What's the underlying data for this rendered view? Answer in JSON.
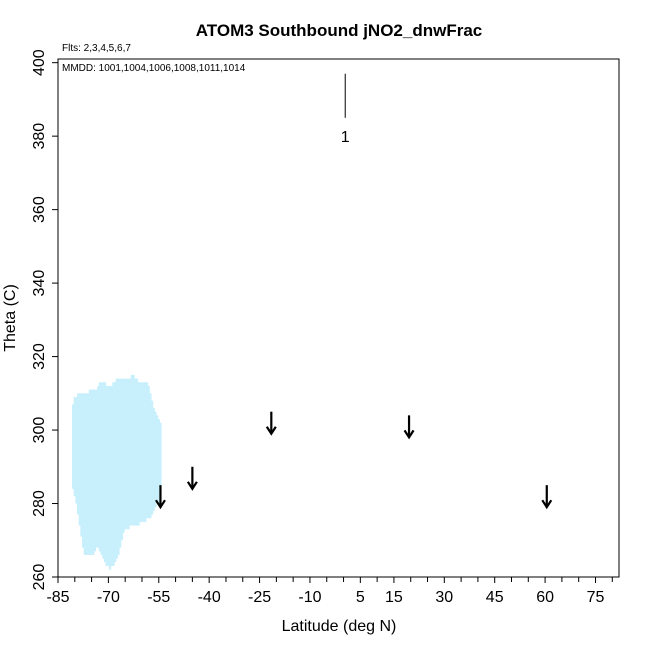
{
  "chart_data": {
    "type": "scatter",
    "title": "ATOM3 Southbound jNO2_dnwFrac",
    "notes": [
      "Flts: 2,3,4,5,6,7",
      "MMDD: 1001,1004,1006,1008,1011,1014"
    ],
    "xlabel": "Latitude (deg N)",
    "ylabel": "Theta (C)",
    "xlim": [
      -85,
      82
    ],
    "ylim": [
      260,
      401
    ],
    "x_ticks_labeled": [
      -85,
      -70,
      -55,
      -40,
      -25,
      -10,
      5,
      15,
      30,
      45,
      60,
      75
    ],
    "x_ticks_labels": [
      "-85",
      "-70",
      "-55",
      "-40",
      "-25",
      "-10",
      "5",
      "15",
      "30",
      "45",
      "60",
      "75"
    ],
    "x_minor_ticks": [
      -80,
      -75,
      -65,
      -60,
      -50,
      -45,
      -35,
      -30,
      -20,
      -15,
      -5,
      0,
      10,
      20,
      25,
      35,
      40,
      50,
      55,
      65,
      70,
      80
    ],
    "y_ticks": [
      260,
      280,
      300,
      320,
      340,
      360,
      380,
      400
    ],
    "y_tick_labels": [
      "260",
      "280",
      "300",
      "320",
      "340",
      "360",
      "380",
      "400"
    ],
    "grid": false,
    "series_color": "#c8f0fc",
    "series": [
      {
        "bands": [
          [
            -80.5,
            284,
            307
          ],
          [
            -80.0,
            282,
            309
          ],
          [
            -79.5,
            280,
            309
          ],
          [
            -79.0,
            277,
            310
          ],
          [
            -78.5,
            274,
            310
          ],
          [
            -78.0,
            271,
            310
          ],
          [
            -77.5,
            268,
            310
          ],
          [
            -77.0,
            266,
            310
          ],
          [
            -76.5,
            266,
            310
          ],
          [
            -76.0,
            266,
            310
          ],
          [
            -75.5,
            266,
            311
          ],
          [
            -75.0,
            266,
            311
          ],
          [
            -74.5,
            266,
            311
          ],
          [
            -74.0,
            267,
            311
          ],
          [
            -73.5,
            268,
            311
          ],
          [
            -73.0,
            268,
            312
          ],
          [
            -72.5,
            267,
            313
          ],
          [
            -72.0,
            266,
            313
          ],
          [
            -71.5,
            265,
            313
          ],
          [
            -71.0,
            264,
            313
          ],
          [
            -70.5,
            263,
            312
          ],
          [
            -70.0,
            263,
            312
          ],
          [
            -69.5,
            262,
            312
          ],
          [
            -69.0,
            263,
            312
          ],
          [
            -68.5,
            263,
            313
          ],
          [
            -68.0,
            264,
            313
          ],
          [
            -67.5,
            265,
            314
          ],
          [
            -67.0,
            266,
            314
          ],
          [
            -66.5,
            268,
            314
          ],
          [
            -66.0,
            270,
            314
          ],
          [
            -65.5,
            272,
            314
          ],
          [
            -65.0,
            273,
            314
          ],
          [
            -64.5,
            273,
            314
          ],
          [
            -64.0,
            273,
            314
          ],
          [
            -63.5,
            274,
            314
          ],
          [
            -63.0,
            274,
            315
          ],
          [
            -62.5,
            274,
            315
          ],
          [
            -62.0,
            274,
            314
          ],
          [
            -61.5,
            274,
            314
          ],
          [
            -61.0,
            274,
            313
          ],
          [
            -60.5,
            275,
            313
          ],
          [
            -60.0,
            275,
            313
          ],
          [
            -59.5,
            275,
            313
          ],
          [
            -59.0,
            275,
            313
          ],
          [
            -58.5,
            276,
            313
          ],
          [
            -58.0,
            276,
            312
          ],
          [
            -57.5,
            276,
            310
          ],
          [
            -57.0,
            277,
            308
          ],
          [
            -56.5,
            278,
            306
          ],
          [
            -56.0,
            279,
            305
          ],
          [
            -55.5,
            280,
            304
          ],
          [
            -55.0,
            280,
            303
          ],
          [
            -54.5,
            281,
            302
          ]
        ]
      }
    ],
    "arrows": [
      {
        "x": -54.5,
        "y_top": 285,
        "y_tip": 279
      },
      {
        "x": -45.0,
        "y_top": 290,
        "y_tip": 284
      },
      {
        "x": -21.5,
        "y_top": 305,
        "y_tip": 299
      },
      {
        "x": 19.5,
        "y_top": 304,
        "y_tip": 298
      },
      {
        "x": 60.5,
        "y_top": 285,
        "y_tip": 279
      }
    ],
    "annotation_marker": {
      "x": 0.5,
      "y_top": 397,
      "y_bottom": 385,
      "label": "1",
      "label_y": 380
    }
  }
}
